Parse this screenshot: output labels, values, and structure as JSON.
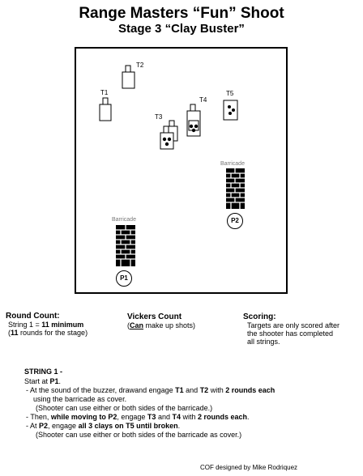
{
  "header": {
    "title": "Range Masters “Fun” Shoot",
    "subtitle": "Stage 3  “Clay Buster”"
  },
  "diagram": {
    "targets": [
      "T1",
      "T2",
      "T3",
      "T4",
      "T5"
    ],
    "barricade_label": "Barricade",
    "positions": [
      "P1",
      "P2"
    ]
  },
  "round_count": {
    "heading": "Round Count:",
    "line1_prefix": "String 1 = ",
    "line1_value": "11 minimum",
    "line2_prefix": "(",
    "line2_value": "11",
    "line2_suffix": " rounds for the stage)"
  },
  "vickers": {
    "heading": "Vickers Count",
    "can": "Can",
    "rest": " make up shots)"
  },
  "scoring": {
    "heading": "Scoring:",
    "lines": [
      "Targets are only scored after",
      "the shooter has completed",
      "all strings."
    ]
  },
  "string1": {
    "heading": "STRING 1 -",
    "start_prefix": "Start at ",
    "start_pos": "P1",
    "l1_a": "- At the sound of the buzzer, drawand engage ",
    "l1_b": "T1",
    "l1_c": " and ",
    "l1_d": "T2",
    "l1_e": " with ",
    "l1_f": "2 rounds each",
    "l2": "using the barricade as cover.",
    "l3": "(Shooter can use either or both sides of the barricade.)",
    "l4_a": "- Then, ",
    "l4_b": "while moving to P2",
    "l4_c": ", engage ",
    "l4_d": "T3",
    "l4_e": " and ",
    "l4_f": "T4",
    "l4_g": " with ",
    "l4_h": "2 rounds each",
    "l5_a": "- At ",
    "l5_b": "P2",
    "l5_c": ", engage ",
    "l5_d": "all 3 clays on T5 until broken",
    "l6": "(Shooter can use either or both sides of the barricade as cover.)"
  },
  "footer": {
    "credit": "COF designed by Mike Rodriquez"
  }
}
